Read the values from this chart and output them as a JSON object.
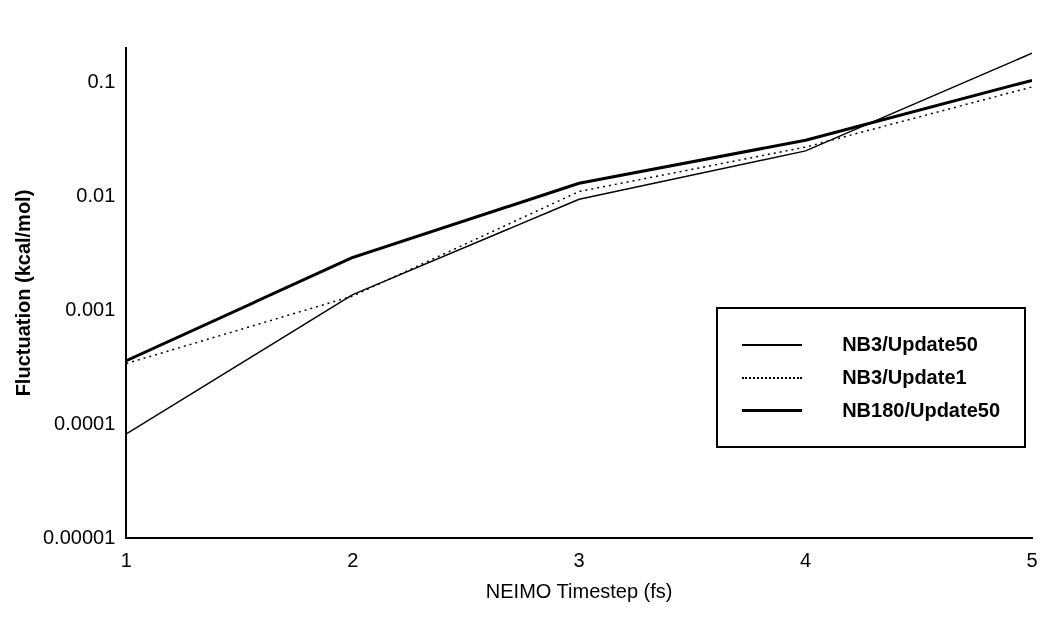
{
  "chart_data": {
    "type": "line",
    "xlabel": "NEIMO Timestep (fs)",
    "ylabel": "Fluctuation (kcal/mol)",
    "x": [
      1,
      2,
      3,
      4,
      5
    ],
    "series": [
      {
        "name": "NB3/Update50",
        "color": "#000000",
        "line_style": "solid",
        "values": [
          8.2e-05,
          0.00137,
          0.0094,
          0.025,
          0.18
        ]
      },
      {
        "name": "NB3/Update1",
        "color": "#000000",
        "line_style": "dotted",
        "values": [
          0.00034,
          0.00133,
          0.011,
          0.027,
          0.091
        ]
      },
      {
        "name": "NB180/Update50",
        "color": "#000000",
        "line_style": "solid",
        "values": [
          0.00036,
          0.0029,
          0.013,
          0.031,
          0.104
        ]
      }
    ],
    "log": "y",
    "xlim": [
      1,
      5
    ],
    "xticks": [
      1,
      2,
      3,
      4,
      5
    ],
    "ylim": [
      1e-05,
      0.2
    ],
    "yticks": [
      {
        "value": 1e-05,
        "label": "0.00001"
      },
      0.0001,
      0.001,
      0.01,
      0.1
    ],
    "grid": false,
    "legend": "bottom right",
    "marker": "none"
  }
}
